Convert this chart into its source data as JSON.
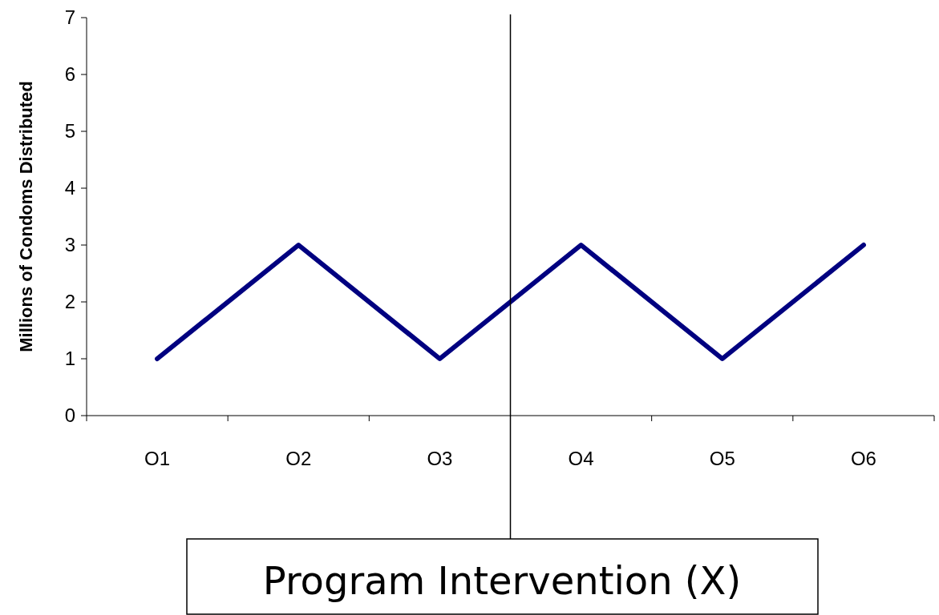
{
  "chart_data": {
    "type": "line",
    "ylabel": "Millions of Condoms Distributed",
    "categories": [
      "O1",
      "O2",
      "O3",
      "O4",
      "O5",
      "O6"
    ],
    "series": [
      {
        "color": "#000080",
        "values": [
          1,
          3,
          1,
          3,
          1,
          3
        ]
      }
    ],
    "ylim": [
      0,
      7
    ],
    "yticks": [
      0,
      1,
      2,
      3,
      4,
      5,
      6,
      7
    ],
    "marker": "none",
    "line_style": "solid",
    "annotations": [
      "Program Intervention (X)"
    ]
  }
}
